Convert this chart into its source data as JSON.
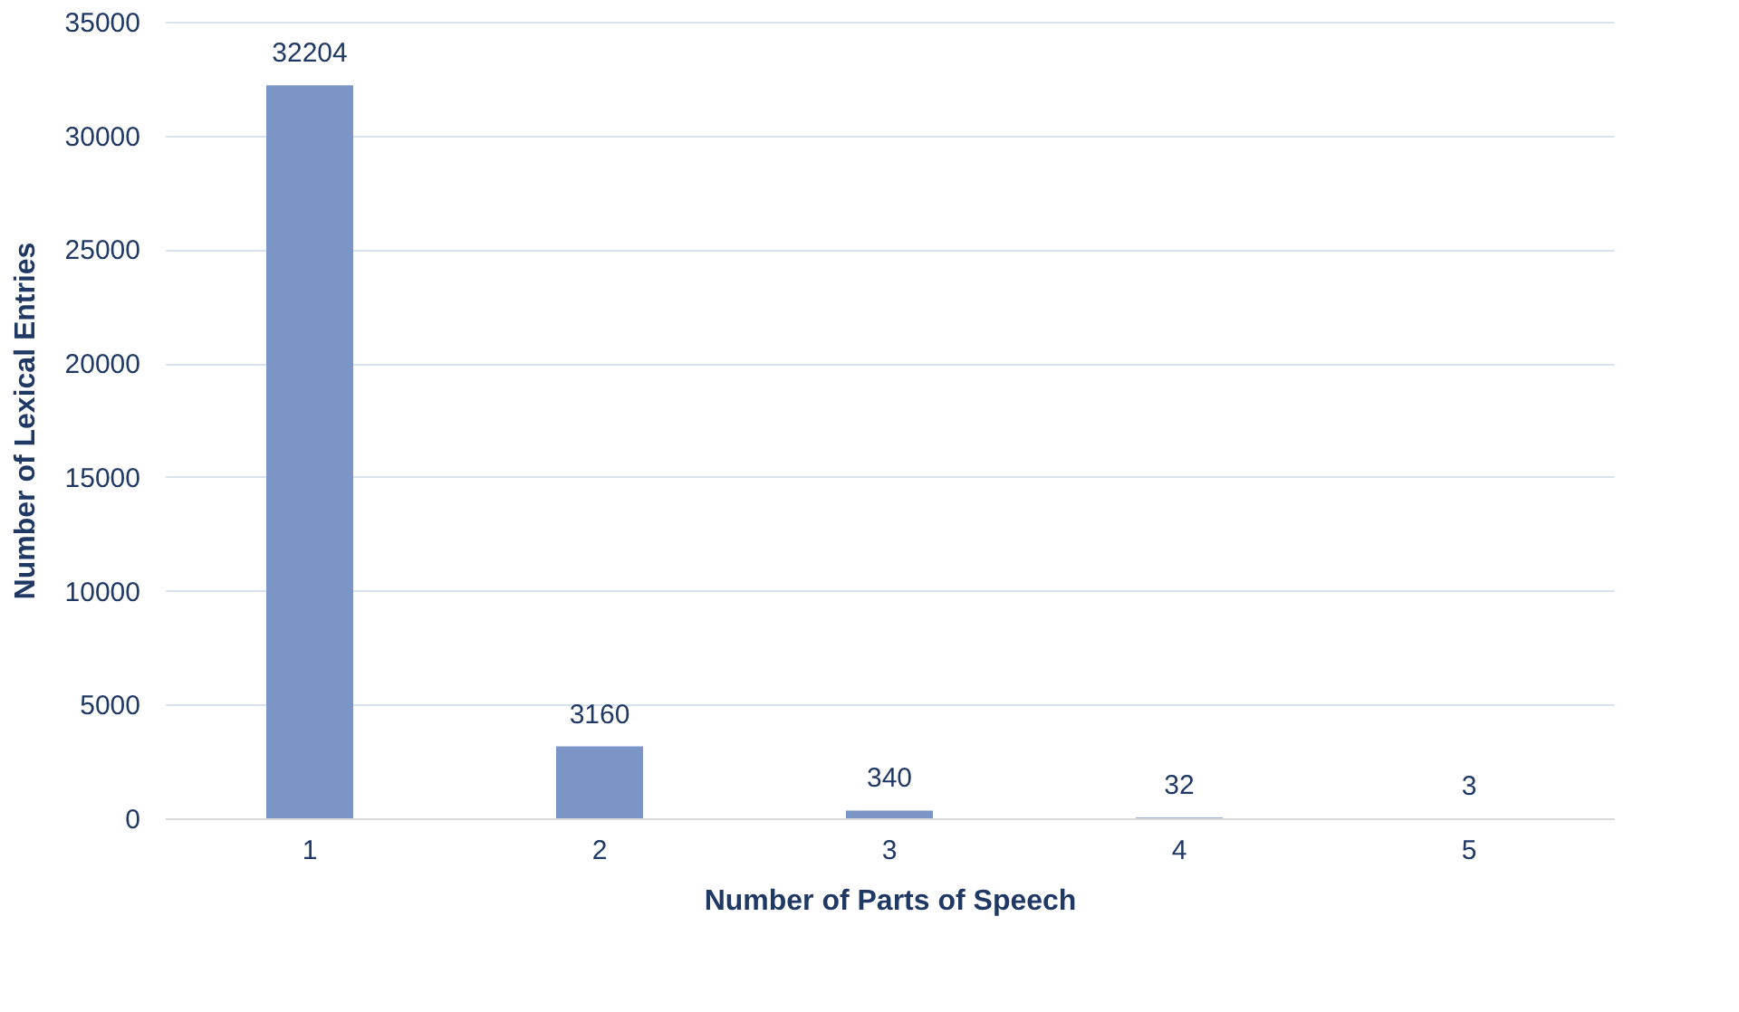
{
  "chart_data": {
    "type": "bar",
    "xlabel": "Number of Parts of Speech",
    "ylabel": "Number of Lexical Entries",
    "categories": [
      "1",
      "2",
      "3",
      "4",
      "5"
    ],
    "values": [
      32204,
      3160,
      340,
      32,
      3
    ],
    "color": "#7b96c6",
    "ylim": [
      0,
      35000
    ],
    "yticks": [
      0,
      5000,
      10000,
      15000,
      20000,
      25000,
      30000,
      35000
    ],
    "grid": "y",
    "data_labels": true
  }
}
